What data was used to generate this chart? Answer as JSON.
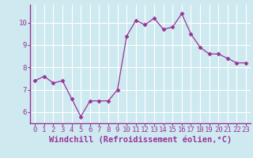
{
  "x": [
    0,
    1,
    2,
    3,
    4,
    5,
    6,
    7,
    8,
    9,
    10,
    11,
    12,
    13,
    14,
    15,
    16,
    17,
    18,
    19,
    20,
    21,
    22,
    23
  ],
  "y": [
    7.4,
    7.6,
    7.3,
    7.4,
    6.6,
    5.8,
    6.5,
    6.5,
    6.5,
    7.0,
    9.4,
    10.1,
    9.9,
    10.2,
    9.7,
    9.8,
    10.4,
    9.5,
    8.9,
    8.6,
    8.6,
    8.4,
    8.2,
    8.2
  ],
  "line_color": "#993399",
  "marker": "D",
  "marker_size": 2.5,
  "bg_color": "#ceeaf0",
  "grid_color": "#ffffff",
  "xlabel": "Windchill (Refroidissement éolien,°C)",
  "xlabel_fontsize": 7.5,
  "tick_label_fontsize": 6.5,
  "ylim": [
    5.5,
    10.8
  ],
  "yticks": [
    6,
    7,
    8,
    9,
    10
  ],
  "xlim": [
    -0.5,
    23.5
  ],
  "xticks": [
    0,
    1,
    2,
    3,
    4,
    5,
    6,
    7,
    8,
    9,
    10,
    11,
    12,
    13,
    14,
    15,
    16,
    17,
    18,
    19,
    20,
    21,
    22,
    23
  ],
  "spine_color": "#993399",
  "axis_color": "#993399"
}
